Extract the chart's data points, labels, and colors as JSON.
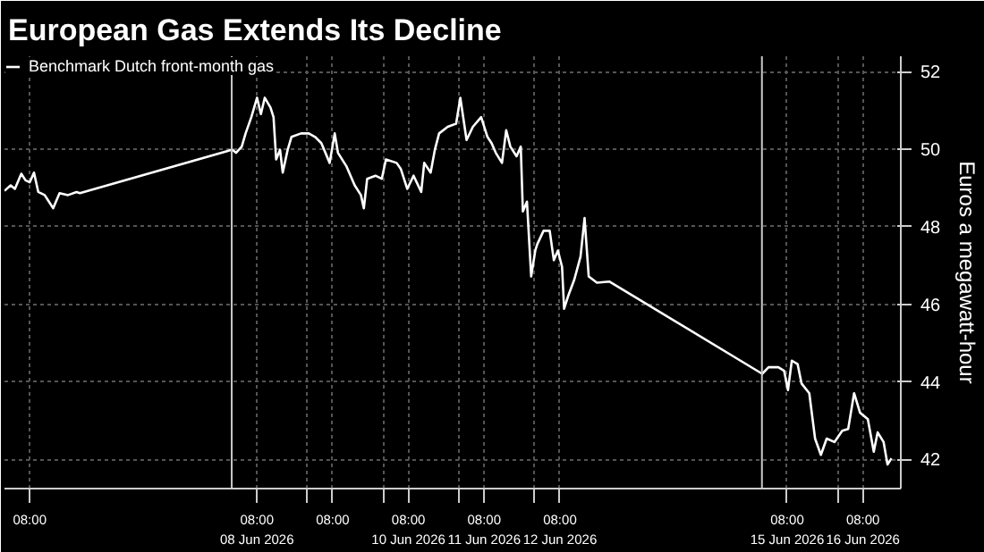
{
  "chart_data": {
    "type": "line",
    "title": "European Gas Extends Its Decline",
    "ylabel": "Euros a megawatt-hour",
    "series": [
      {
        "name": "Benchmark Dutch front-month gas",
        "color": "#ffffff",
        "x": [
          "2026-06-05T00:00",
          "2026-06-05T01:58",
          "2026-06-05T03:18",
          "2026-06-05T05:20",
          "2026-06-05T06:40",
          "2026-06-05T08:01",
          "2026-06-05T09:21",
          "2026-06-05T10:43",
          "2026-06-05T12:44",
          "2026-06-05T14:05",
          "2026-06-05T15:25",
          "2026-06-05T17:27",
          "2026-06-05T20:09",
          "2026-06-05T22:50",
          "2026-06-05T23:54",
          "2026-06-08T00:09",
          "2026-06-08T01:22",
          "2026-06-08T03:11",
          "2026-06-08T04:24",
          "2026-06-08T06:13",
          "2026-06-08T08:02",
          "2026-06-08T09:15",
          "2026-06-08T10:28",
          "2026-06-08T12:17",
          "2026-06-08T13:15",
          "2026-06-08T14:05",
          "2026-06-08T15:19",
          "2026-06-08T16:10",
          "2026-06-08T17:44",
          "2026-06-08T18:56",
          "2026-06-08T21:58",
          "2026-06-09T00:26",
          "2026-06-09T02:25",
          "2026-06-09T04:24",
          "2026-06-09T07:02",
          "2026-06-09T08:38",
          "2026-06-09T09:40",
          "2026-06-09T12:18",
          "2026-06-09T14:58",
          "2026-06-09T16:56",
          "2026-06-09T17:52",
          "2026-06-09T18:55",
          "2026-06-09T21:33",
          "2026-06-09T23:33",
          "2026-06-10T00:52",
          "2026-06-10T04:15",
          "2026-06-10T05:36",
          "2026-06-10T07:37",
          "2026-06-10T09:37",
          "2026-06-10T12:03",
          "2026-06-10T13:00",
          "2026-06-10T15:02",
          "2026-06-10T16:22",
          "2026-06-10T17:43",
          "2026-06-10T20:25",
          "2026-06-10T23:06",
          "2026-06-11T00:26",
          "2026-06-11T02:25",
          "2026-06-11T04:24",
          "2026-06-11T07:02",
          "2026-06-11T09:02",
          "2026-06-11T10:20",
          "2026-06-11T11:40",
          "2026-06-11T13:38",
          "2026-06-11T14:58",
          "2026-06-11T16:17",
          "2026-06-11T18:15",
          "2026-06-11T19:35",
          "2026-06-11T20:15",
          "2026-06-11T21:33",
          "2026-06-11T22:53",
          "2026-06-12T00:11",
          "2026-06-12T00:51",
          "2026-06-12T02:49",
          "2026-06-12T04:45",
          "2026-06-12T06:04",
          "2026-06-12T07:21",
          "2026-06-12T08:40",
          "2026-06-12T09:19",
          "2026-06-12T10:37",
          "2026-06-12T12:33",
          "2026-06-12T14:31",
          "2026-06-12T15:48",
          "2026-06-12T17:07",
          "2026-06-12T19:43",
          "2026-06-12T23:37",
          "2026-06-15T00:05",
          "2026-06-15T02:06",
          "2026-06-15T05:11",
          "2026-06-15T07:01",
          "2026-06-15T08:15",
          "2026-06-15T09:28",
          "2026-06-15T11:18",
          "2026-06-15T12:33",
          "2026-06-15T15:00",
          "2026-06-15T16:50",
          "2026-06-15T18:41",
          "2026-06-15T20:31",
          "2026-06-15T22:58",
          "2026-06-16T01:27",
          "2026-06-16T03:20",
          "2026-06-16T05:12",
          "2026-06-16T07:04",
          "2026-06-16T09:33",
          "2026-06-16T11:26",
          "2026-06-16T12:40",
          "2026-06-16T14:33",
          "2026-06-16T15:47",
          "2026-06-16T17:03"
        ],
        "values": [
          48.93,
          49.07,
          48.98,
          49.37,
          49.2,
          49.15,
          49.4,
          48.9,
          48.82,
          48.65,
          48.48,
          48.87,
          48.82,
          48.9,
          48.87,
          49.99,
          49.91,
          50.07,
          50.41,
          50.83,
          51.33,
          50.91,
          51.33,
          51.08,
          50.83,
          49.74,
          49.99,
          49.4,
          49.99,
          50.32,
          50.41,
          50.41,
          50.32,
          50.16,
          49.65,
          50.41,
          49.91,
          49.57,
          49.07,
          48.82,
          48.48,
          49.24,
          49.32,
          49.24,
          49.74,
          49.65,
          49.49,
          48.98,
          49.32,
          48.9,
          49.65,
          49.4,
          49.99,
          50.41,
          50.58,
          50.66,
          51.33,
          50.24,
          50.58,
          50.83,
          50.32,
          50.16,
          49.91,
          49.65,
          50.49,
          50.07,
          49.82,
          50.07,
          48.4,
          48.65,
          46.72,
          47.39,
          47.56,
          47.9,
          47.9,
          47.14,
          47.39,
          46.97,
          45.89,
          46.22,
          46.64,
          47.23,
          48.23,
          46.72,
          46.56,
          46.59,
          44.21,
          44.38,
          44.38,
          44.29,
          43.79,
          44.55,
          44.46,
          43.96,
          43.71,
          42.54,
          42.12,
          42.54,
          42.45,
          42.74,
          42.79,
          43.71,
          43.21,
          43.04,
          42.2,
          42.7,
          42.45,
          41.87,
          42.03
        ]
      }
    ],
    "xlim": [
      "2026-06-05T00:00",
      "2026-06-16T20:00"
    ],
    "ylim": [
      41.25,
      52.4
    ],
    "yticks": [
      42,
      44,
      46,
      48,
      50,
      52
    ],
    "xticks": [
      {
        "value": "2026-06-05T08:00",
        "label": "08:00"
      },
      {
        "value": "2026-06-08T08:00",
        "label": "08:00\n08 Jun 2026"
      },
      {
        "value": "2026-06-09T00:00",
        "label": null
      },
      {
        "value": "2026-06-09T08:00",
        "label": "08:00"
      },
      {
        "value": "2026-06-10T00:00",
        "label": null
      },
      {
        "value": "2026-06-10T08:00",
        "label": "08:00\n10 Jun 2026"
      },
      {
        "value": "2026-06-11T00:00",
        "label": null
      },
      {
        "value": "2026-06-11T08:00",
        "label": "08:00\n11 Jun 2026"
      },
      {
        "value": "2026-06-12T00:00",
        "label": null
      },
      {
        "value": "2026-06-12T08:00",
        "label": "08:00\n12 Jun 2026"
      },
      {
        "value": "2026-06-15T08:00",
        "label": "08:00\n15 Jun 2026"
      },
      {
        "value": "2026-06-16T00:00",
        "label": null
      },
      {
        "value": "2026-06-16T08:00",
        "label": "08:00\n16 Jun 2026"
      }
    ],
    "ref_lines": [
      {
        "axis": "x",
        "value": "2026-06-08T00:00",
        "color": "#c8c8c8",
        "line_style": "solid"
      },
      {
        "axis": "x",
        "value": "2026-06-15T00:00",
        "color": "#c8c8c8",
        "line_style": "solid"
      }
    ],
    "grid": true,
    "legend": "top left",
    "line_style": "solid",
    "marker": "none"
  }
}
